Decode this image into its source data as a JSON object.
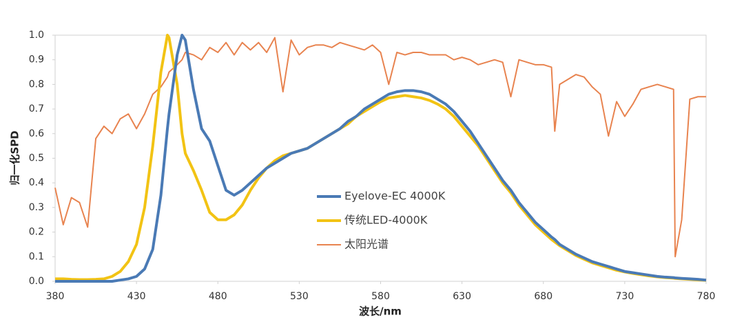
{
  "chart_data": {
    "type": "line",
    "xlabel": "波长/nm",
    "ylabel": "归一化SPD",
    "x": [
      380,
      385,
      390,
      395,
      400,
      405,
      410,
      415,
      420,
      425,
      430,
      435,
      440,
      445,
      449,
      450,
      455,
      458,
      460,
      465,
      470,
      475,
      480,
      485,
      490,
      495,
      500,
      505,
      510,
      515,
      520,
      525,
      530,
      535,
      540,
      545,
      550,
      555,
      560,
      565,
      570,
      575,
      580,
      585,
      590,
      595,
      600,
      605,
      610,
      615,
      620,
      625,
      630,
      635,
      640,
      645,
      650,
      655,
      660,
      665,
      670,
      675,
      680,
      685,
      687,
      690,
      695,
      700,
      705,
      710,
      715,
      720,
      725,
      730,
      735,
      740,
      745,
      750,
      755,
      760,
      761,
      765,
      770,
      775,
      780
    ],
    "series": [
      {
        "name": "Eyelove-EC 4000K",
        "color": "#4a7ab5",
        "values": [
          0,
          0,
          0,
          0,
          0,
          0,
          0,
          0,
          0.005,
          0.01,
          0.02,
          0.05,
          0.13,
          0.35,
          0.62,
          0.68,
          0.92,
          1.0,
          0.98,
          0.78,
          0.62,
          0.57,
          0.47,
          0.37,
          0.35,
          0.37,
          0.4,
          0.43,
          0.46,
          0.48,
          0.5,
          0.52,
          0.53,
          0.54,
          0.56,
          0.58,
          0.6,
          0.62,
          0.65,
          0.67,
          0.7,
          0.72,
          0.74,
          0.76,
          0.77,
          0.775,
          0.775,
          0.77,
          0.76,
          0.74,
          0.72,
          0.69,
          0.65,
          0.61,
          0.56,
          0.51,
          0.46,
          0.41,
          0.37,
          0.32,
          0.28,
          0.24,
          0.21,
          0.18,
          0.17,
          0.15,
          0.13,
          0.11,
          0.095,
          0.08,
          0.07,
          0.06,
          0.05,
          0.04,
          0.035,
          0.03,
          0.025,
          0.02,
          0.017,
          0.015,
          0.014,
          0.012,
          0.01,
          0.008,
          0.005
        ]
      },
      {
        "name": "传统LED-4000K",
        "color": "#f2c314",
        "values": [
          0.01,
          0.01,
          0.008,
          0.007,
          0.007,
          0.008,
          0.01,
          0.02,
          0.04,
          0.08,
          0.15,
          0.3,
          0.55,
          0.85,
          1.0,
          0.99,
          0.8,
          0.6,
          0.52,
          0.45,
          0.37,
          0.28,
          0.25,
          0.25,
          0.27,
          0.31,
          0.37,
          0.42,
          0.46,
          0.49,
          0.51,
          0.52,
          0.53,
          0.54,
          0.56,
          0.58,
          0.6,
          0.62,
          0.64,
          0.67,
          0.69,
          0.71,
          0.73,
          0.745,
          0.75,
          0.755,
          0.75,
          0.745,
          0.735,
          0.72,
          0.7,
          0.67,
          0.63,
          0.59,
          0.55,
          0.5,
          0.45,
          0.4,
          0.36,
          0.31,
          0.27,
          0.23,
          0.2,
          0.17,
          0.16,
          0.145,
          0.125,
          0.105,
          0.09,
          0.075,
          0.065,
          0.055,
          0.045,
          0.038,
          0.032,
          0.027,
          0.022,
          0.018,
          0.015,
          0.013,
          0.012,
          0.01,
          0.008,
          0.006,
          0.004
        ]
      },
      {
        "name": "太阳光谱",
        "color": "#e8834f",
        "values": [
          0.38,
          0.23,
          0.34,
          0.32,
          0.22,
          0.58,
          0.63,
          0.6,
          0.66,
          0.68,
          0.62,
          0.68,
          0.76,
          0.79,
          0.83,
          0.85,
          0.88,
          0.9,
          0.93,
          0.92,
          0.9,
          0.95,
          0.93,
          0.97,
          0.92,
          0.97,
          0.94,
          0.97,
          0.93,
          0.99,
          0.77,
          0.98,
          0.92,
          0.95,
          0.96,
          0.96,
          0.95,
          0.97,
          0.96,
          0.95,
          0.94,
          0.96,
          0.93,
          0.8,
          0.93,
          0.92,
          0.93,
          0.93,
          0.92,
          0.92,
          0.92,
          0.9,
          0.91,
          0.9,
          0.88,
          0.89,
          0.9,
          0.89,
          0.75,
          0.9,
          0.89,
          0.88,
          0.88,
          0.87,
          0.61,
          0.8,
          0.82,
          0.84,
          0.83,
          0.79,
          0.76,
          0.59,
          0.73,
          0.67,
          0.72,
          0.78,
          0.79,
          0.8,
          0.79,
          0.78,
          0.1,
          0.25,
          0.74,
          0.75,
          0.75
        ]
      }
    ],
    "xlim": [
      380,
      780
    ],
    "xticks": [
      380,
      430,
      480,
      530,
      580,
      630,
      680,
      730,
      780
    ],
    "ylim": [
      0,
      1
    ],
    "yticks": [
      {
        "value": 0,
        "label": "0.0"
      },
      0.1,
      0.2,
      0.3,
      0.4,
      0.5,
      0.6,
      0.7,
      0.8,
      0.9,
      {
        "value": 1,
        "label": "1.0"
      }
    ],
    "grid": false,
    "legend": "center"
  }
}
